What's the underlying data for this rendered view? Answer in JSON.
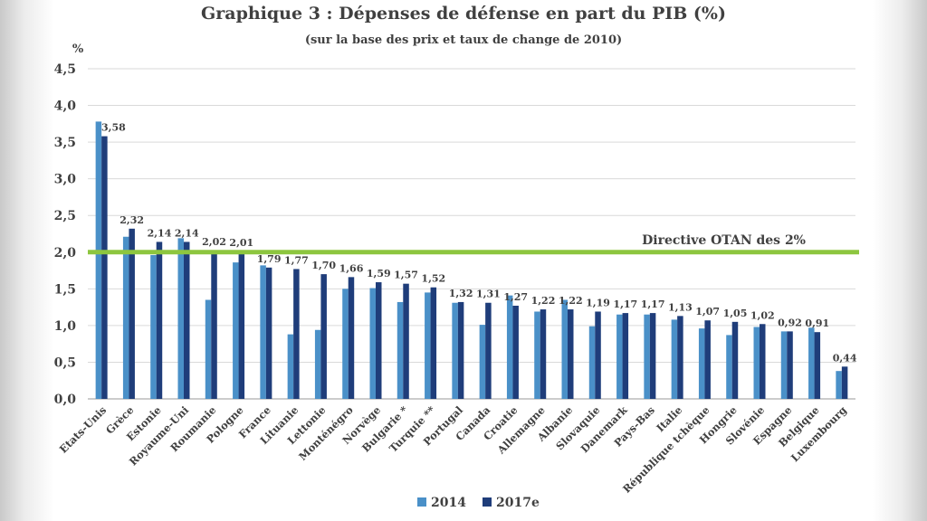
{
  "chart_data": {
    "type": "bar",
    "title": "Graphique 3 : Dépenses de défense en part du PIB (%)",
    "subtitle": "(sur la base des prix et taux de change de 2010)",
    "ylabel": "%",
    "ylim": [
      0,
      4.5
    ],
    "yticks": [
      "0,0",
      "0,5",
      "1,0",
      "1,5",
      "2,0",
      "2,5",
      "3,0",
      "3,5",
      "4,0",
      "4,5"
    ],
    "grid": true,
    "legend_position": "bottom",
    "categories": [
      "Etats-Unis",
      "Grèce",
      "Estonie",
      "Royaume-Uni",
      "Roumanie",
      "Pologne",
      "France",
      "Lituanie",
      "Lettonie",
      "Monténégro",
      "Norvège",
      "Bulgarie *",
      "Turquie **",
      "Portugal",
      "Canada",
      "Croatie",
      "Allemagne",
      "Albanie",
      "Slovaquie",
      "Danemark",
      "Pays-Bas",
      "Italie",
      "République tchèque",
      "Hongrie",
      "Slovénie",
      "Espagne",
      "Belgique",
      "Luxembourg"
    ],
    "series": [
      {
        "name": "2014",
        "color": "#4a90c8",
        "values": [
          3.78,
          2.21,
          1.96,
          2.19,
          1.35,
          1.86,
          1.82,
          0.88,
          0.94,
          1.5,
          1.51,
          1.32,
          1.45,
          1.31,
          1.01,
          1.41,
          1.19,
          1.35,
          0.99,
          1.15,
          1.15,
          1.08,
          0.96,
          0.87,
          0.98,
          0.92,
          0.97,
          0.38
        ]
      },
      {
        "name": "2017e",
        "color": "#1f3d7a",
        "values": [
          3.58,
          2.32,
          2.14,
          2.14,
          2.02,
          2.01,
          1.79,
          1.77,
          1.7,
          1.66,
          1.59,
          1.57,
          1.52,
          1.32,
          1.31,
          1.27,
          1.22,
          1.22,
          1.19,
          1.17,
          1.17,
          1.13,
          1.07,
          1.05,
          1.02,
          0.92,
          0.91,
          0.44
        ]
      }
    ],
    "data_labels": [
      "3,58",
      "2,32",
      "2,14",
      "2,14",
      "2,02",
      "2,01",
      "1,79",
      "1,77",
      "1,70",
      "1,66",
      "1,59",
      "1,57",
      "1,52",
      "1,32",
      "1,31",
      "1,27",
      "1,22",
      "1,22",
      "1,19",
      "1,17",
      "1,17",
      "1,13",
      "1,07",
      "1,05",
      "1,02",
      "0,92",
      "0,91",
      "0,44"
    ],
    "reference_line": {
      "value": 2.0,
      "label": "Directive OTAN des 2%",
      "color": "#8dc63f"
    }
  }
}
